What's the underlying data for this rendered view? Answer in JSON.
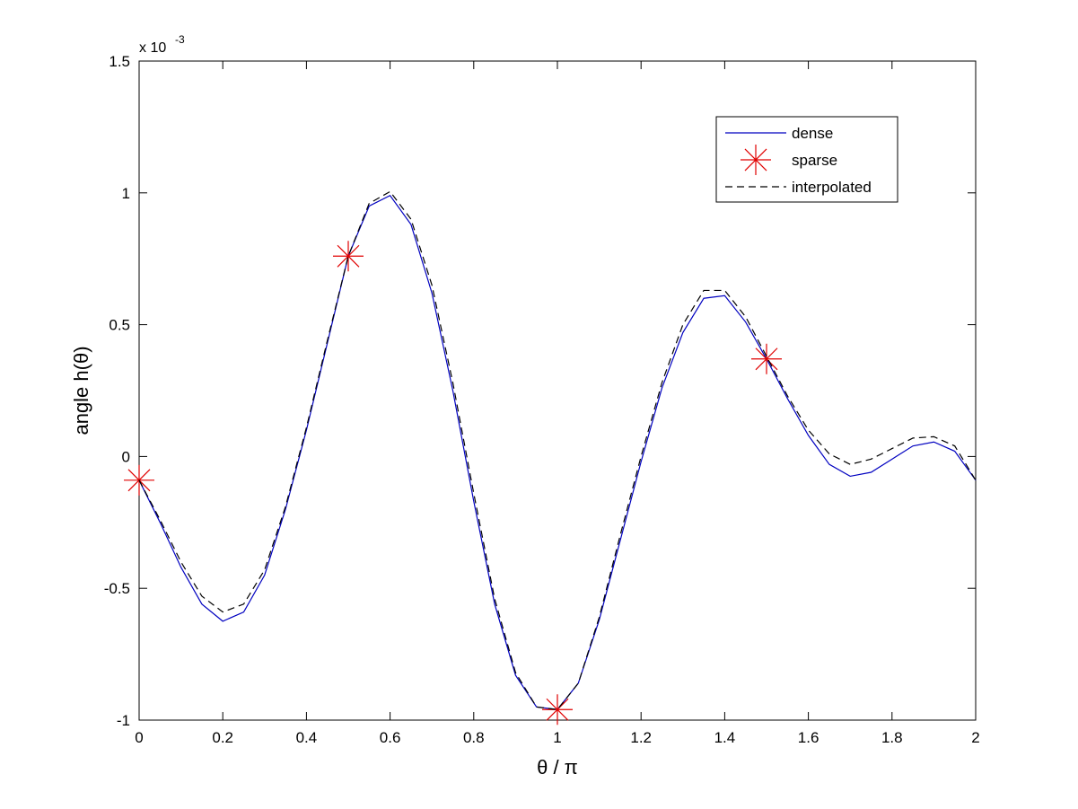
{
  "chart_data": {
    "type": "line",
    "xlabel": "θ / π",
    "ylabel": "angle h(θ)",
    "y_multiplier": "x 10",
    "y_multiplier_exponent": "-3",
    "xlim": [
      0,
      2
    ],
    "ylim": [
      -1,
      1.5
    ],
    "xticks": [
      0,
      0.2,
      0.4,
      0.6,
      0.8,
      1,
      1.2,
      1.4,
      1.6,
      1.8,
      2
    ],
    "yticks": [
      -1,
      -0.5,
      0,
      0.5,
      1,
      1.5
    ],
    "grid": false,
    "legend_location": "northeast",
    "series": [
      {
        "name": "dense",
        "color": "#0000c0",
        "style": "solid",
        "marker": "none",
        "x": [
          0,
          0.05,
          0.1,
          0.15,
          0.2,
          0.25,
          0.3,
          0.35,
          0.4,
          0.45,
          0.5,
          0.55,
          0.6,
          0.65,
          0.7,
          0.75,
          0.8,
          0.85,
          0.9,
          0.95,
          1,
          1.05,
          1.1,
          1.15,
          1.2,
          1.25,
          1.3,
          1.35,
          1.4,
          1.45,
          1.5,
          1.55,
          1.6,
          1.65,
          1.7,
          1.75,
          1.8,
          1.85,
          1.9,
          1.95,
          2
        ],
        "values": [
          -0.09,
          -0.25,
          -0.42,
          -0.56,
          -0.625,
          -0.59,
          -0.45,
          -0.2,
          0.1,
          0.43,
          0.76,
          0.95,
          0.99,
          0.88,
          0.62,
          0.25,
          -0.17,
          -0.56,
          -0.83,
          -0.95,
          -0.96,
          -0.86,
          -0.62,
          -0.32,
          -0.02,
          0.26,
          0.47,
          0.6,
          0.61,
          0.51,
          0.37,
          0.22,
          0.08,
          -0.03,
          -0.075,
          -0.06,
          -0.01,
          0.04,
          0.055,
          0.02,
          -0.09
        ]
      },
      {
        "name": "sparse",
        "color": "#e00000",
        "style": "none",
        "marker": "star",
        "x": [
          0,
          0.5,
          1,
          1.5
        ],
        "values": [
          -0.09,
          0.76,
          -0.96,
          0.37
        ]
      },
      {
        "name": "interpolated",
        "color": "#000000",
        "style": "dashed",
        "marker": "none",
        "x": [
          0,
          0.05,
          0.1,
          0.15,
          0.2,
          0.25,
          0.3,
          0.35,
          0.4,
          0.45,
          0.5,
          0.55,
          0.6,
          0.65,
          0.7,
          0.75,
          0.8,
          0.85,
          0.9,
          0.95,
          1,
          1.05,
          1.1,
          1.15,
          1.2,
          1.25,
          1.3,
          1.35,
          1.4,
          1.45,
          1.5,
          1.55,
          1.6,
          1.65,
          1.7,
          1.75,
          1.8,
          1.85,
          1.9,
          1.95,
          2
        ],
        "values": [
          -0.09,
          -0.24,
          -0.4,
          -0.53,
          -0.59,
          -0.56,
          -0.43,
          -0.19,
          0.11,
          0.44,
          0.76,
          0.96,
          1.005,
          0.9,
          0.65,
          0.28,
          -0.14,
          -0.54,
          -0.82,
          -0.95,
          -0.96,
          -0.86,
          -0.61,
          -0.3,
          0,
          0.28,
          0.5,
          0.63,
          0.63,
          0.53,
          0.38,
          0.23,
          0.1,
          0.01,
          -0.03,
          -0.01,
          0.03,
          0.07,
          0.075,
          0.04,
          -0.09
        ]
      }
    ]
  }
}
